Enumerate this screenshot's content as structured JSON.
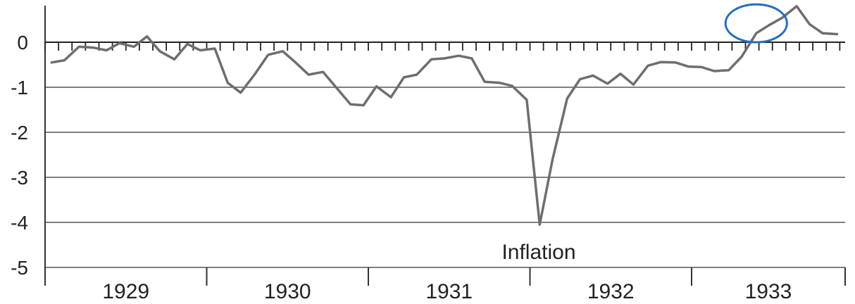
{
  "chart_data": {
    "type": "line",
    "title": "",
    "xlabel": "",
    "ylabel": "",
    "x_categories": [
      "1929",
      "1930",
      "1931",
      "1932",
      "1933"
    ],
    "x_range": [
      1929,
      1933.95
    ],
    "ylim": [
      -5,
      0.8
    ],
    "yticks": [
      0,
      -1,
      -2,
      -3,
      -4,
      -5
    ],
    "ytick_labels": [
      "0",
      "-1",
      "-2",
      "-3",
      "-4",
      "-5"
    ],
    "grid": "horizontal",
    "annotation": "Inflation",
    "series": [
      {
        "color": "#6e6e6e",
        "x": [
          1929.04,
          1929.12,
          1929.21,
          1929.3,
          1929.38,
          1929.46,
          1929.55,
          1929.63,
          1929.71,
          1929.8,
          1929.88,
          1929.96,
          1930.05,
          1930.13,
          1930.21,
          1930.3,
          1930.38,
          1930.47,
          1930.55,
          1930.63,
          1930.72,
          1930.8,
          1930.89,
          1930.97,
          1931.05,
          1931.14,
          1931.22,
          1931.3,
          1931.39,
          1931.47,
          1931.56,
          1931.64,
          1931.72,
          1931.81,
          1931.89,
          1931.98,
          1932.06,
          1932.14,
          1932.23,
          1932.31,
          1932.39,
          1932.48,
          1932.56,
          1932.64,
          1932.73,
          1932.81,
          1932.9,
          1932.98,
          1933.06,
          1933.14,
          1933.23,
          1933.31,
          1933.4,
          1933.48,
          1933.56,
          1933.65,
          1933.73,
          1933.81,
          1933.9
        ],
        "values": [
          -0.45,
          -0.4,
          -0.1,
          -0.12,
          -0.18,
          -0.02,
          -0.1,
          0.13,
          -0.2,
          -0.38,
          -0.04,
          -0.18,
          -0.14,
          -0.9,
          -1.12,
          -0.7,
          -0.28,
          -0.2,
          -0.45,
          -0.72,
          -0.66,
          -1.0,
          -1.38,
          -1.4,
          -0.98,
          -1.22,
          -0.78,
          -0.72,
          -0.38,
          -0.36,
          -0.3,
          -0.36,
          -0.88,
          -0.9,
          -0.97,
          -1.28,
          -4.05,
          -2.6,
          -1.25,
          -0.82,
          -0.74,
          -0.92,
          -0.7,
          -0.94,
          -0.52,
          -0.44,
          -0.45,
          -0.54,
          -0.55,
          -0.64,
          -0.62,
          -0.32,
          0.2,
          0.38,
          0.54,
          0.8,
          0.4,
          0.2,
          0.18
        ]
      }
    ],
    "highlight": {
      "shape": "ellipse",
      "color": "#1f6fbf",
      "center": [
        1933.4,
        0.42
      ],
      "rx_years": 0.19,
      "ry_units": 0.42
    }
  }
}
